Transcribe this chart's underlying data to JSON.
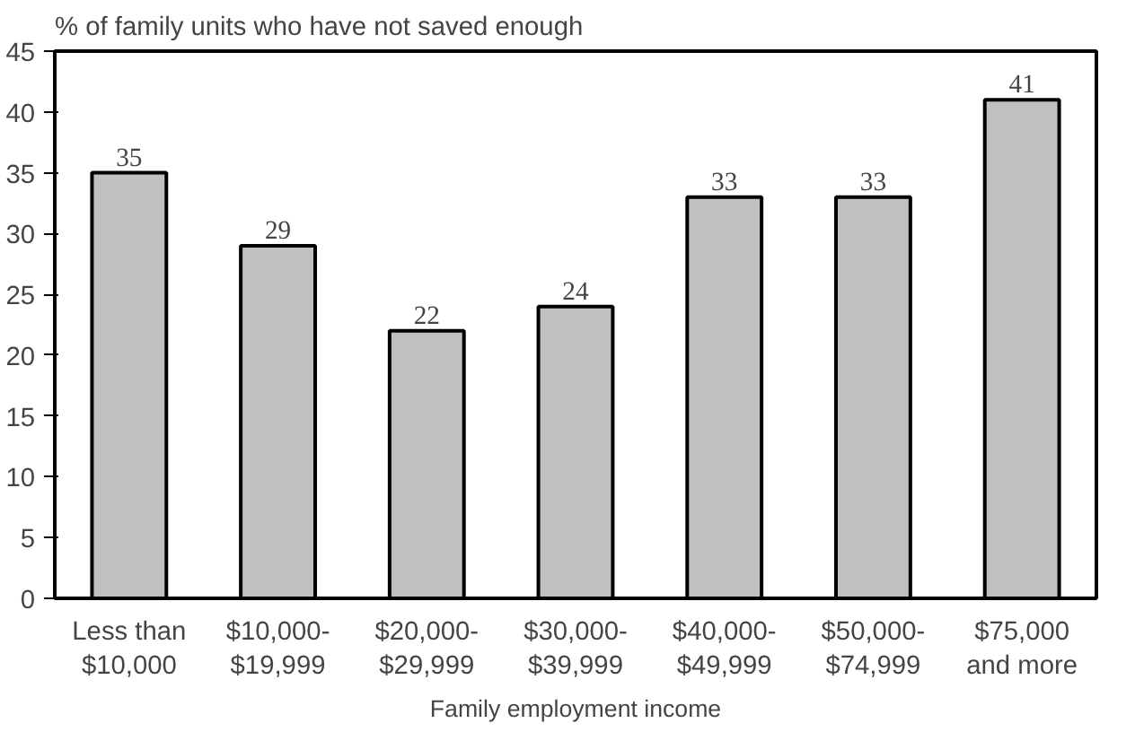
{
  "chart_data": {
    "type": "bar",
    "title": "% of family units who have not saved enough",
    "xlabel": "Family employment income",
    "categories": [
      "Less than\n$10,000",
      "$10,000-\n$19,999",
      "$20,000-\n$29,999",
      "$30,000-\n$39,999",
      "$40,000-\n$49,999",
      "$50,000-\n$74,999",
      "$75,000\nand more"
    ],
    "values": [
      35,
      29,
      22,
      24,
      33,
      33,
      41
    ],
    "color": "#c0c0c0",
    "ylim": [
      0,
      45
    ],
    "yticks": [
      0,
      5,
      10,
      15,
      20,
      25,
      30,
      35,
      40,
      45
    ],
    "grid": false,
    "data_labels": true
  }
}
